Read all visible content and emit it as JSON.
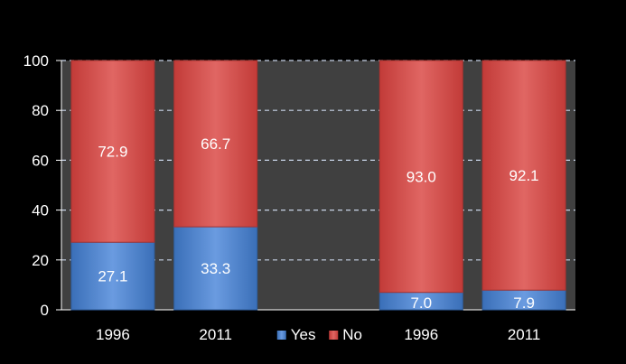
{
  "chart_data": {
    "type": "bar",
    "stacked": true,
    "categories": [
      "1996",
      "2011",
      "",
      "1996",
      "2011"
    ],
    "series": [
      {
        "name": "Yes",
        "values": [
          27.1,
          33.3,
          null,
          7.0,
          7.9
        ]
      },
      {
        "name": "No",
        "values": [
          72.9,
          66.7,
          null,
          93.0,
          92.1
        ]
      }
    ],
    "value_labels": {
      "Yes": [
        "27.1",
        "33.3",
        "",
        "7.0",
        "7.9"
      ],
      "No": [
        "72.9",
        "66.7",
        "",
        "93.0",
        "92.1"
      ]
    },
    "y_ticks": [
      "0",
      "20",
      "40",
      "60",
      "80",
      "100"
    ],
    "ylim": [
      0,
      100
    ],
    "title": "",
    "xlabel": "",
    "ylabel": "",
    "grid": "horizontal-dashed",
    "legend_placement": "bottom-center",
    "colors": {
      "Yes": "#4f86d0",
      "No": "#d84a47",
      "plot_background": "#404040",
      "page_background": "#000000",
      "grid": "#c8d4e8",
      "text": "#ffffff"
    }
  }
}
